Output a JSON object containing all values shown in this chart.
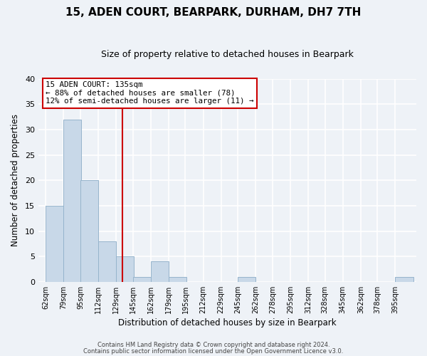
{
  "title": "15, ADEN COURT, BEARPARK, DURHAM, DH7 7TH",
  "subtitle": "Size of property relative to detached houses in Bearpark",
  "xlabel": "Distribution of detached houses by size in Bearpark",
  "ylabel": "Number of detached properties",
  "bar_labels": [
    "62sqm",
    "79sqm",
    "95sqm",
    "112sqm",
    "129sqm",
    "145sqm",
    "162sqm",
    "179sqm",
    "195sqm",
    "212sqm",
    "229sqm",
    "245sqm",
    "262sqm",
    "278sqm",
    "295sqm",
    "312sqm",
    "328sqm",
    "345sqm",
    "362sqm",
    "378sqm",
    "395sqm"
  ],
  "bar_values": [
    15,
    32,
    20,
    8,
    5,
    1,
    4,
    1,
    0,
    0,
    0,
    1,
    0,
    0,
    0,
    0,
    0,
    0,
    0,
    0,
    1
  ],
  "bar_color": "#c8d8e8",
  "bar_edge_color": "#96b4cc",
  "annotation_text_line1": "15 ADEN COURT: 135sqm",
  "annotation_text_line2": "← 88% of detached houses are smaller (78)",
  "annotation_text_line3": "12% of semi-detached houses are larger (11) →",
  "annotation_box_facecolor": "white",
  "annotation_box_edgecolor": "#cc0000",
  "line_color": "#cc0000",
  "ylim": [
    0,
    40
  ],
  "footer_line1": "Contains HM Land Registry data © Crown copyright and database right 2024.",
  "footer_line2": "Contains public sector information licensed under the Open Government Licence v3.0.",
  "background_color": "#eef2f7",
  "grid_color": "white",
  "title_fontsize": 11,
  "subtitle_fontsize": 9
}
